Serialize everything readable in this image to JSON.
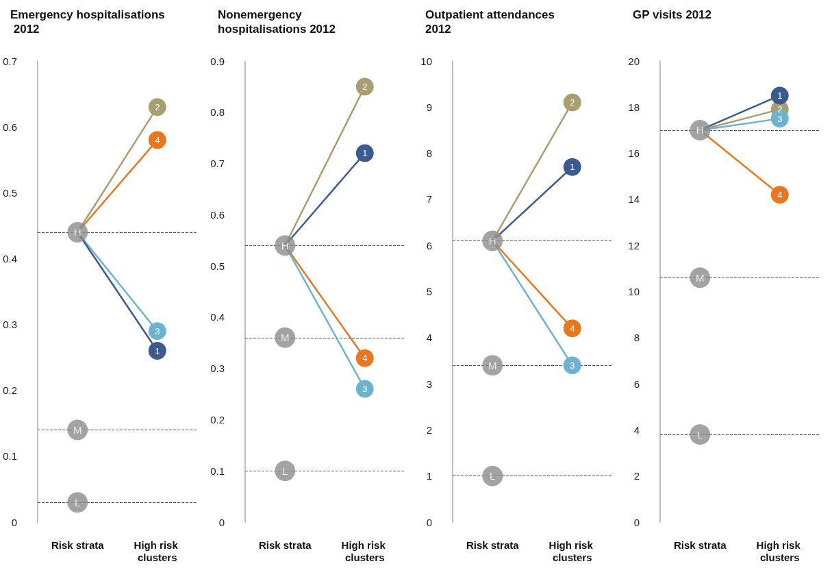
{
  "chart_data": [
    {
      "type": "line",
      "title": "Emergency hospitalisations 2012",
      "categories": [
        "Risk strata",
        "High risk clusters"
      ],
      "ylim": [
        0,
        0.7
      ],
      "yticks": [
        0,
        0.1,
        0.2,
        0.3,
        0.4,
        0.5,
        0.6,
        0.7
      ],
      "marker": "circle",
      "series": [
        {
          "name": "2",
          "color": "#a99e72",
          "values": [
            0.44,
            0.63
          ]
        },
        {
          "name": "4",
          "color": "#e8781f",
          "values": [
            0.44,
            0.58
          ]
        },
        {
          "name": "3",
          "color": "#6db3d0",
          "values": [
            0.44,
            0.29
          ]
        },
        {
          "name": "1",
          "color": "#3b5a8f",
          "values": [
            0.44,
            0.26
          ]
        },
        {
          "name": "H",
          "type": "scatter",
          "color": "#8c8c8c",
          "values": [
            0.44,
            null
          ]
        },
        {
          "name": "M",
          "type": "scatter",
          "color": "#8c8c8c",
          "values": [
            0.14,
            null
          ]
        },
        {
          "name": "L",
          "type": "scatter",
          "color": "#8c8c8c",
          "values": [
            0.03,
            null
          ]
        }
      ],
      "ref_lines": [
        {
          "axis": "y",
          "value": 0.44,
          "color": "#555555",
          "line_style": "dashed"
        },
        {
          "axis": "y",
          "value": 0.14,
          "color": "#555555",
          "line_style": "dashed"
        },
        {
          "axis": "y",
          "value": 0.03,
          "color": "#555555",
          "line_style": "dashed"
        }
      ]
    },
    {
      "type": "line",
      "title": "Nonemergency hospitalisations 2012",
      "categories": [
        "Risk strata",
        "High risk clusters"
      ],
      "ylim": [
        0,
        0.9
      ],
      "yticks": [
        0,
        0.1,
        0.2,
        0.3,
        0.4,
        0.5,
        0.6,
        0.7,
        0.8,
        0.9
      ],
      "marker": "circle",
      "series": [
        {
          "name": "2",
          "color": "#a99e72",
          "values": [
            0.54,
            0.85
          ]
        },
        {
          "name": "1",
          "color": "#3b5a8f",
          "values": [
            0.54,
            0.72
          ]
        },
        {
          "name": "4",
          "color": "#e8781f",
          "values": [
            0.54,
            0.32
          ]
        },
        {
          "name": "3",
          "color": "#6db3d0",
          "values": [
            0.54,
            0.26
          ]
        },
        {
          "name": "H",
          "type": "scatter",
          "color": "#8c8c8c",
          "values": [
            0.54,
            null
          ]
        },
        {
          "name": "M",
          "type": "scatter",
          "color": "#8c8c8c",
          "values": [
            0.36,
            null
          ]
        },
        {
          "name": "L",
          "type": "scatter",
          "color": "#8c8c8c",
          "values": [
            0.1,
            null
          ]
        }
      ],
      "ref_lines": [
        {
          "axis": "y",
          "value": 0.54,
          "color": "#555555",
          "line_style": "dashed"
        },
        {
          "axis": "y",
          "value": 0.36,
          "color": "#555555",
          "line_style": "dashed"
        },
        {
          "axis": "y",
          "value": 0.1,
          "color": "#555555",
          "line_style": "dashed"
        }
      ]
    },
    {
      "type": "line",
      "title": "Outpatient attendances 2012",
      "categories": [
        "Risk strata",
        "High risk clusters"
      ],
      "ylim": [
        0,
        10
      ],
      "yticks": [
        0,
        1,
        2,
        3,
        4,
        5,
        6,
        7,
        8,
        9,
        10
      ],
      "marker": "circle",
      "series": [
        {
          "name": "2",
          "color": "#a99e72",
          "values": [
            6.1,
            9.1
          ]
        },
        {
          "name": "1",
          "color": "#3b5a8f",
          "values": [
            6.1,
            7.7
          ]
        },
        {
          "name": "4",
          "color": "#e8781f",
          "values": [
            6.1,
            4.2
          ]
        },
        {
          "name": "3",
          "color": "#6db3d0",
          "values": [
            6.1,
            3.4
          ]
        },
        {
          "name": "H",
          "type": "scatter",
          "color": "#8c8c8c",
          "values": [
            6.1,
            null
          ]
        },
        {
          "name": "M",
          "type": "scatter",
          "color": "#8c8c8c",
          "values": [
            3.4,
            null
          ]
        },
        {
          "name": "L",
          "type": "scatter",
          "color": "#8c8c8c",
          "values": [
            1.0,
            null
          ]
        }
      ],
      "ref_lines": [
        {
          "axis": "y",
          "value": 6.1,
          "color": "#555555",
          "line_style": "dashed"
        },
        {
          "axis": "y",
          "value": 3.4,
          "color": "#555555",
          "line_style": "dashed"
        },
        {
          "axis": "y",
          "value": 1.0,
          "color": "#555555",
          "line_style": "dashed"
        }
      ]
    },
    {
      "type": "line",
      "title": "GP visits 2012",
      "categories": [
        "Risk strata",
        "High risk clusters"
      ],
      "ylim": [
        0,
        20
      ],
      "yticks": [
        0,
        2,
        4,
        6,
        8,
        10,
        12,
        14,
        16,
        18,
        20
      ],
      "marker": "circle",
      "series": [
        {
          "name": "2",
          "color": "#a99e72",
          "values": [
            17.0,
            17.9
          ]
        },
        {
          "name": "1",
          "color": "#3b5a8f",
          "values": [
            17.0,
            18.5
          ]
        },
        {
          "name": "3",
          "color": "#6db3d0",
          "values": [
            17.0,
            17.5
          ]
        },
        {
          "name": "4",
          "color": "#e8781f",
          "values": [
            17.0,
            14.2
          ]
        },
        {
          "name": "H",
          "type": "scatter",
          "color": "#8c8c8c",
          "values": [
            17.0,
            null
          ]
        },
        {
          "name": "M",
          "type": "scatter",
          "color": "#8c8c8c",
          "values": [
            10.6,
            null
          ]
        },
        {
          "name": "L",
          "type": "scatter",
          "color": "#8c8c8c",
          "values": [
            3.8,
            null
          ]
        }
      ],
      "ref_lines": [
        {
          "axis": "y",
          "value": 17.0,
          "color": "#555555",
          "line_style": "dashed"
        },
        {
          "axis": "y",
          "value": 10.6,
          "color": "#555555",
          "line_style": "dashed"
        },
        {
          "axis": "y",
          "value": 3.8,
          "color": "#555555",
          "line_style": "dashed"
        }
      ]
    }
  ]
}
